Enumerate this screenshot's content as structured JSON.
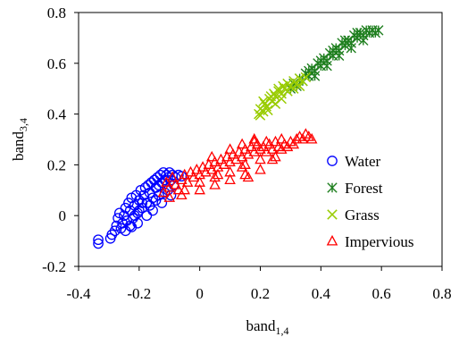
{
  "chart_data": {
    "type": "scatter",
    "xlabel": {
      "main": "band",
      "sub": "1,4"
    },
    "ylabel": {
      "main": "band",
      "sub": "3,4"
    },
    "xlim": [
      -0.4,
      0.8
    ],
    "ylim": [
      -0.2,
      0.8
    ],
    "xticks": [
      -0.4,
      -0.2,
      0,
      0.2,
      0.4,
      0.6,
      0.8
    ],
    "yticks": [
      -0.2,
      0,
      0.2,
      0.4,
      0.6,
      0.8
    ],
    "xtick_labels": [
      "-0.4",
      "-0.2",
      "0",
      "0.2",
      "0.4",
      "0.6",
      "0.8"
    ],
    "ytick_labels": [
      "-0.2",
      "0",
      "0.2",
      "0.4",
      "0.6",
      "0.8"
    ],
    "grid": false,
    "legend_position": "right, below center",
    "series": [
      {
        "name": "Water",
        "marker": "circle",
        "color": "#0000ff",
        "points": [
          [
            -0.335,
            -0.11
          ],
          [
            -0.335,
            -0.095
          ],
          [
            -0.295,
            -0.09
          ],
          [
            -0.29,
            -0.075
          ],
          [
            -0.28,
            -0.06
          ],
          [
            -0.275,
            -0.04
          ],
          [
            -0.27,
            -0.01
          ],
          [
            -0.265,
            0.01
          ],
          [
            -0.255,
            -0.03
          ],
          [
            -0.25,
            0.0
          ],
          [
            -0.245,
            0.03
          ],
          [
            -0.24,
            -0.02
          ],
          [
            -0.235,
            0.05
          ],
          [
            -0.23,
            0.02
          ],
          [
            -0.225,
            0.07
          ],
          [
            -0.22,
            -0.01
          ],
          [
            -0.215,
            0.04
          ],
          [
            -0.21,
            0.08
          ],
          [
            -0.205,
            0.01
          ],
          [
            -0.2,
            0.06
          ],
          [
            -0.195,
            0.1
          ],
          [
            -0.19,
            0.03
          ],
          [
            -0.185,
            0.08
          ],
          [
            -0.18,
            0.11
          ],
          [
            -0.175,
            0.05
          ],
          [
            -0.17,
            0.12
          ],
          [
            -0.165,
            0.09
          ],
          [
            -0.16,
            0.13
          ],
          [
            -0.155,
            0.07
          ],
          [
            -0.15,
            0.14
          ],
          [
            -0.145,
            0.11
          ],
          [
            -0.14,
            0.15
          ],
          [
            -0.135,
            0.12
          ],
          [
            -0.13,
            0.16
          ],
          [
            -0.125,
            0.13
          ],
          [
            -0.12,
            0.17
          ],
          [
            -0.115,
            0.14
          ],
          [
            -0.11,
            0.16
          ],
          [
            -0.105,
            0.15
          ],
          [
            -0.1,
            0.17
          ],
          [
            -0.095,
            0.14
          ],
          [
            -0.09,
            0.16
          ],
          [
            -0.085,
            0.12
          ],
          [
            -0.08,
            0.15
          ],
          [
            -0.07,
            0.16
          ],
          [
            -0.06,
            0.155
          ],
          [
            -0.23,
            -0.04
          ],
          [
            -0.215,
            0.0
          ],
          [
            -0.2,
            0.02
          ],
          [
            -0.19,
            0.05
          ],
          [
            -0.175,
            0.0
          ],
          [
            -0.165,
            0.04
          ],
          [
            -0.155,
            0.02
          ],
          [
            -0.145,
            0.06
          ],
          [
            -0.135,
            0.08
          ],
          [
            -0.125,
            0.05
          ],
          [
            -0.115,
            0.09
          ],
          [
            -0.105,
            0.1
          ],
          [
            -0.095,
            0.08
          ],
          [
            -0.26,
            -0.05
          ],
          [
            -0.245,
            -0.06
          ],
          [
            -0.225,
            -0.045
          ],
          [
            -0.205,
            -0.03
          ]
        ]
      },
      {
        "name": "Forest",
        "marker": "asterisk",
        "color": "#1f7f1f",
        "points": [
          [
            0.3,
            0.5
          ],
          [
            0.31,
            0.52
          ],
          [
            0.32,
            0.51
          ],
          [
            0.33,
            0.54
          ],
          [
            0.34,
            0.53
          ],
          [
            0.35,
            0.56
          ],
          [
            0.36,
            0.55
          ],
          [
            0.37,
            0.58
          ],
          [
            0.38,
            0.57
          ],
          [
            0.39,
            0.6
          ],
          [
            0.4,
            0.59
          ],
          [
            0.41,
            0.62
          ],
          [
            0.42,
            0.61
          ],
          [
            0.43,
            0.64
          ],
          [
            0.44,
            0.63
          ],
          [
            0.45,
            0.66
          ],
          [
            0.46,
            0.65
          ],
          [
            0.47,
            0.68
          ],
          [
            0.48,
            0.67
          ],
          [
            0.49,
            0.69
          ],
          [
            0.5,
            0.68
          ],
          [
            0.51,
            0.71
          ],
          [
            0.52,
            0.7
          ],
          [
            0.53,
            0.72
          ],
          [
            0.54,
            0.71
          ],
          [
            0.55,
            0.73
          ],
          [
            0.56,
            0.72
          ],
          [
            0.57,
            0.73
          ],
          [
            0.58,
            0.72
          ],
          [
            0.59,
            0.73
          ],
          [
            0.36,
            0.57
          ],
          [
            0.4,
            0.61
          ],
          [
            0.44,
            0.65
          ],
          [
            0.48,
            0.69
          ],
          [
            0.52,
            0.72
          ],
          [
            0.42,
            0.59
          ],
          [
            0.46,
            0.63
          ],
          [
            0.5,
            0.66
          ],
          [
            0.54,
            0.69
          ],
          [
            0.38,
            0.55
          ]
        ]
      },
      {
        "name": "Grass",
        "marker": "x",
        "color": "#99cc00",
        "points": [
          [
            0.195,
            0.4
          ],
          [
            0.2,
            0.42
          ],
          [
            0.21,
            0.41
          ],
          [
            0.215,
            0.44
          ],
          [
            0.22,
            0.43
          ],
          [
            0.23,
            0.46
          ],
          [
            0.24,
            0.45
          ],
          [
            0.245,
            0.48
          ],
          [
            0.25,
            0.47
          ],
          [
            0.26,
            0.49
          ],
          [
            0.27,
            0.48
          ],
          [
            0.275,
            0.51
          ],
          [
            0.28,
            0.5
          ],
          [
            0.29,
            0.52
          ],
          [
            0.3,
            0.51
          ],
          [
            0.31,
            0.53
          ],
          [
            0.32,
            0.52
          ],
          [
            0.33,
            0.54
          ],
          [
            0.34,
            0.53
          ],
          [
            0.35,
            0.545
          ],
          [
            0.2,
            0.395
          ],
          [
            0.225,
            0.415
          ],
          [
            0.25,
            0.44
          ],
          [
            0.27,
            0.46
          ],
          [
            0.29,
            0.49
          ],
          [
            0.31,
            0.5
          ],
          [
            0.33,
            0.51
          ],
          [
            0.21,
            0.45
          ],
          [
            0.235,
            0.47
          ],
          [
            0.26,
            0.5
          ]
        ]
      },
      {
        "name": "Impervious",
        "marker": "triangle",
        "color": "#ff0000",
        "points": [
          [
            -0.12,
            0.09
          ],
          [
            -0.11,
            0.13
          ],
          [
            -0.1,
            0.11
          ],
          [
            -0.09,
            0.15
          ],
          [
            -0.08,
            0.12
          ],
          [
            -0.07,
            0.1
          ],
          [
            -0.06,
            0.14
          ],
          [
            -0.05,
            0.16
          ],
          [
            -0.04,
            0.13
          ],
          [
            -0.03,
            0.17
          ],
          [
            -0.02,
            0.15
          ],
          [
            -0.01,
            0.18
          ],
          [
            0.0,
            0.16
          ],
          [
            0.01,
            0.19
          ],
          [
            0.02,
            0.17
          ],
          [
            0.03,
            0.2
          ],
          [
            0.04,
            0.18
          ],
          [
            0.05,
            0.21
          ],
          [
            0.06,
            0.19
          ],
          [
            0.07,
            0.22
          ],
          [
            0.08,
            0.2
          ],
          [
            0.09,
            0.23
          ],
          [
            0.1,
            0.21
          ],
          [
            0.11,
            0.24
          ],
          [
            0.12,
            0.22
          ],
          [
            0.13,
            0.25
          ],
          [
            0.14,
            0.23
          ],
          [
            0.15,
            0.26
          ],
          [
            0.16,
            0.24
          ],
          [
            0.17,
            0.27
          ],
          [
            0.18,
            0.25
          ],
          [
            0.19,
            0.28
          ],
          [
            0.2,
            0.26
          ],
          [
            0.21,
            0.27
          ],
          [
            0.22,
            0.25
          ],
          [
            0.23,
            0.28
          ],
          [
            0.24,
            0.26
          ],
          [
            0.25,
            0.29
          ],
          [
            0.26,
            0.27
          ],
          [
            0.27,
            0.26
          ],
          [
            0.28,
            0.28
          ],
          [
            0.29,
            0.27
          ],
          [
            0.3,
            0.29
          ],
          [
            0.31,
            0.28
          ],
          [
            0.32,
            0.3
          ],
          [
            0.33,
            0.31
          ],
          [
            0.34,
            0.3
          ],
          [
            0.35,
            0.32
          ],
          [
            0.36,
            0.31
          ],
          [
            0.37,
            0.3
          ],
          [
            -0.1,
            0.07
          ],
          [
            -0.05,
            0.1
          ],
          [
            0.0,
            0.13
          ],
          [
            0.05,
            0.15
          ],
          [
            0.1,
            0.17
          ],
          [
            0.15,
            0.2
          ],
          [
            0.2,
            0.22
          ],
          [
            0.25,
            0.23
          ],
          [
            0.14,
            0.19
          ],
          [
            0.06,
            0.16
          ],
          [
            0.22,
            0.29
          ],
          [
            0.18,
            0.3
          ],
          [
            0.14,
            0.28
          ],
          [
            0.1,
            0.26
          ],
          [
            0.04,
            0.23
          ],
          [
            0.27,
            0.3
          ],
          [
            0.24,
            0.22
          ],
          [
            0.2,
            0.18
          ],
          [
            0.15,
            0.16
          ],
          [
            0.1,
            0.14
          ],
          [
            0.05,
            0.12
          ],
          [
            0.0,
            0.1
          ],
          [
            -0.06,
            0.08
          ],
          [
            0.16,
            0.15
          ],
          [
            0.18,
            0.29
          ]
        ]
      }
    ]
  }
}
